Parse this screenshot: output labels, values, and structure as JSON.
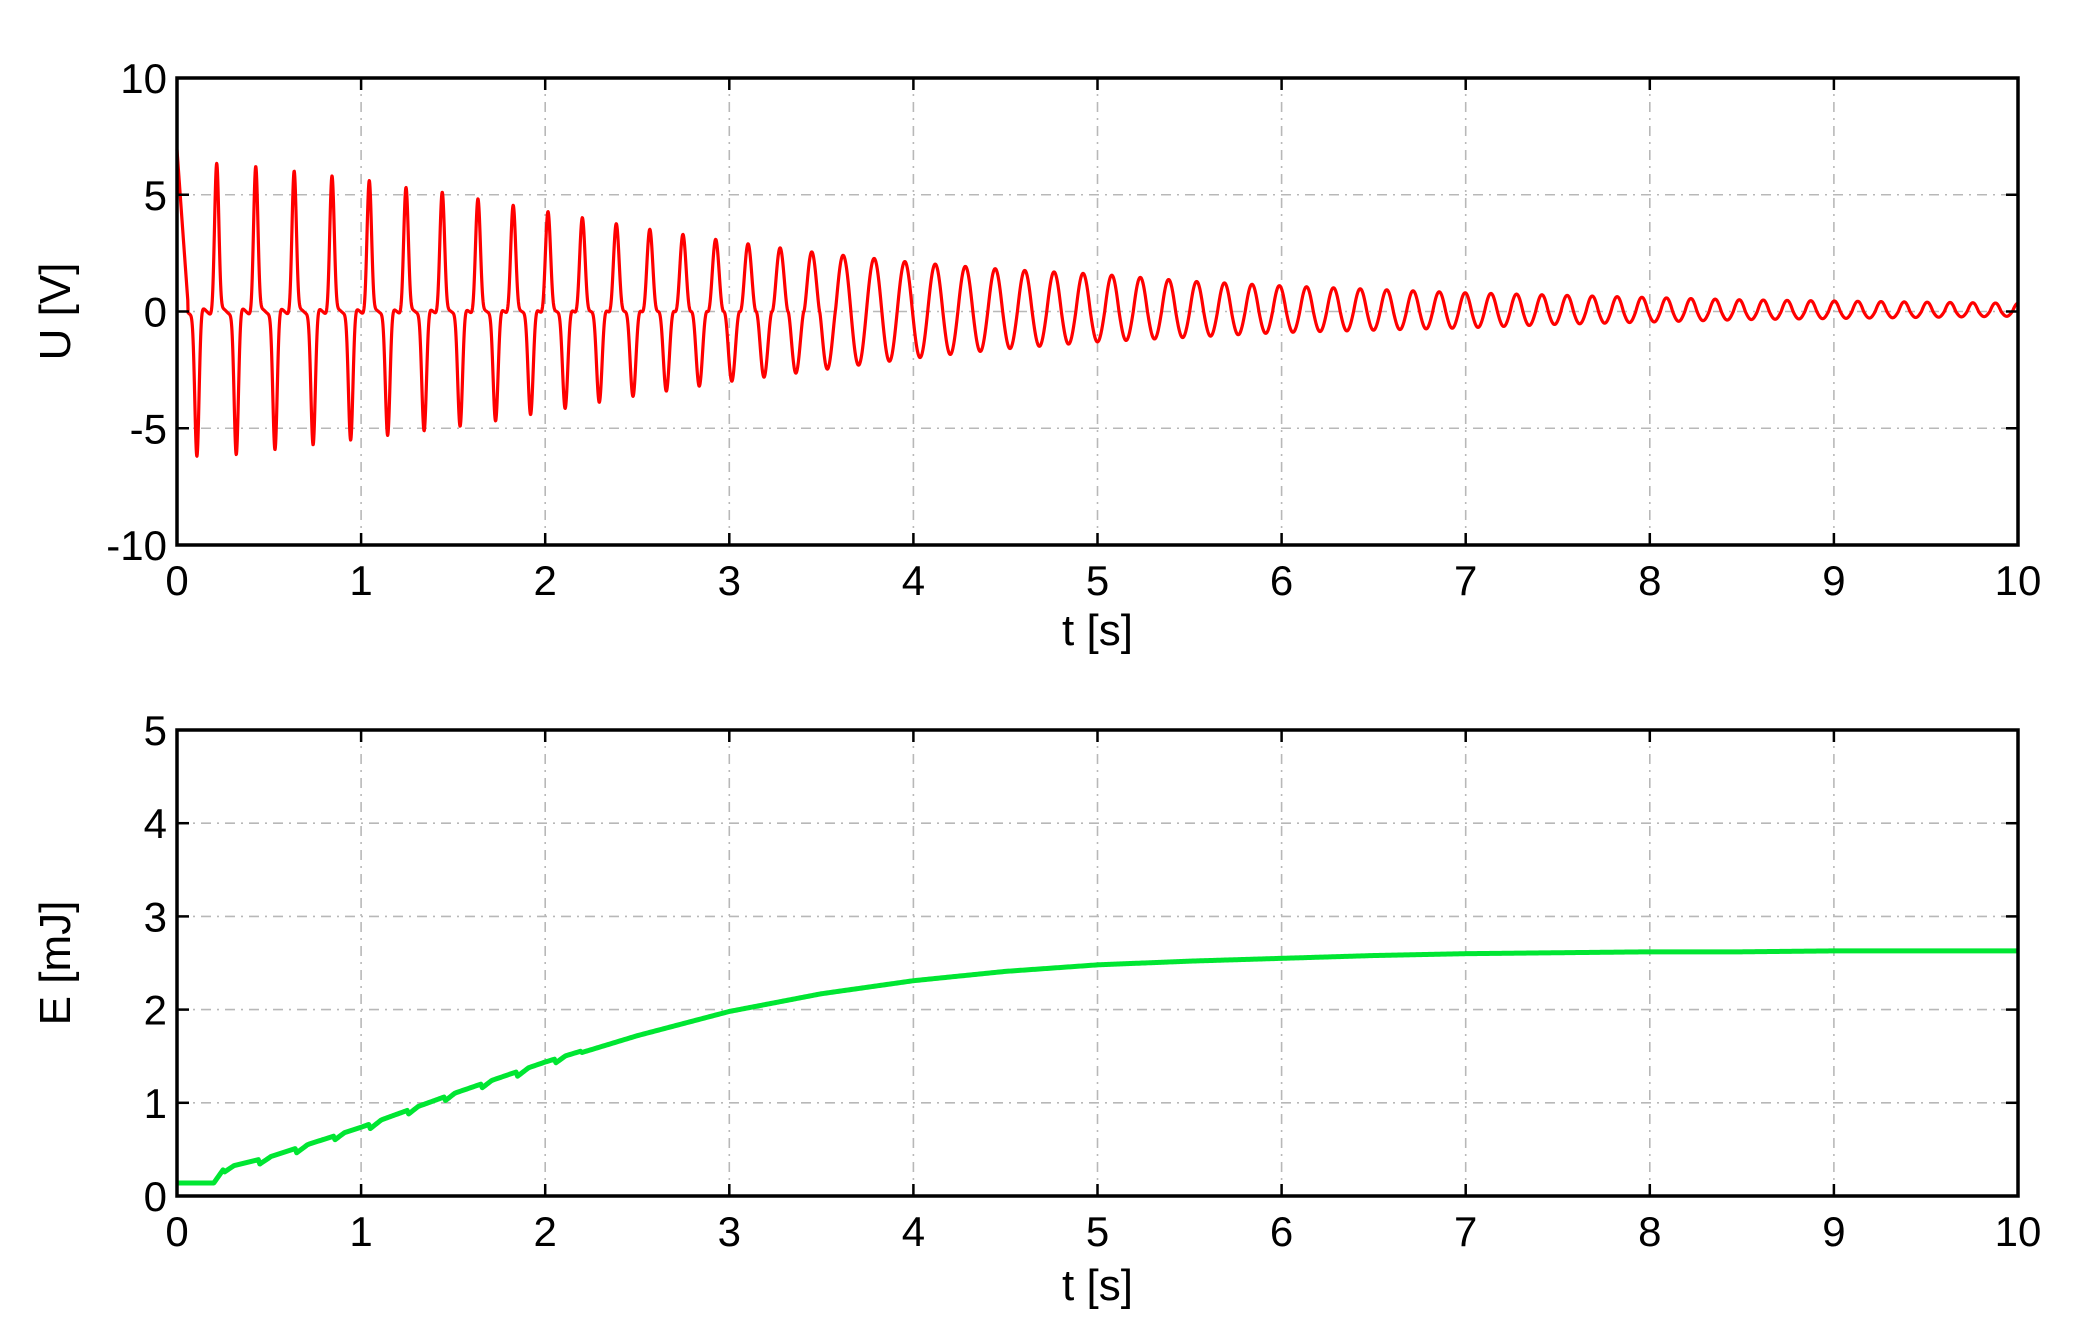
{
  "chart_data": [
    {
      "type": "line",
      "xlabel": "t [s]",
      "ylabel": "U [V]",
      "xlim": [
        0,
        10
      ],
      "ylim": [
        -10,
        10
      ],
      "xticks": [
        "0",
        "1",
        "2",
        "3",
        "4",
        "5",
        "6",
        "7",
        "8",
        "9",
        "10"
      ],
      "yticks": [
        "10",
        "5",
        "0",
        "-5",
        "-10"
      ],
      "grid": true,
      "series": [
        {
          "color": "#ff0000",
          "description": "damped oscillating voltage; spike pulses every ~0.2 s at start, frequency increasing, amplitude decaying",
          "x": [
            0.0,
            0.25,
            0.45,
            0.65,
            0.85,
            1.05,
            1.25,
            1.45,
            1.65,
            2.0,
            2.5,
            3.0,
            3.5,
            4.0,
            4.5,
            5.0,
            5.5,
            6.0,
            6.5,
            7.0,
            7.5,
            8.0,
            8.5,
            9.0,
            9.5,
            10.0
          ],
          "upper_envelope": [
            6.6,
            6.3,
            6.2,
            6.0,
            5.8,
            5.6,
            5.3,
            5.1,
            4.8,
            4.3,
            3.6,
            3.0,
            2.5,
            2.1,
            1.8,
            1.6,
            1.3,
            1.1,
            0.95,
            0.8,
            0.7,
            0.6,
            0.5,
            0.45,
            0.4,
            0.35
          ],
          "lower_envelope": [
            -6.2,
            -6.2,
            -6.0,
            -5.8,
            -5.6,
            -5.4,
            -5.2,
            -5.0,
            -4.8,
            -4.3,
            -3.6,
            -3.0,
            -2.5,
            -2.0,
            -1.6,
            -1.3,
            -1.1,
            -0.9,
            -0.8,
            -0.7,
            -0.55,
            -0.45,
            -0.35,
            -0.3,
            -0.25,
            -0.2
          ]
        }
      ]
    },
    {
      "type": "line",
      "xlabel": "t [s]",
      "ylabel": "E [mJ]",
      "xlim": [
        0,
        10
      ],
      "ylim": [
        0,
        5
      ],
      "xticks": [
        "0",
        "1",
        "2",
        "3",
        "4",
        "5",
        "6",
        "7",
        "8",
        "9",
        "10"
      ],
      "yticks": [
        "5",
        "4",
        "3",
        "2",
        "1",
        "0"
      ],
      "grid": true,
      "series": [
        {
          "color": "#00e632",
          "description": "cumulative energy, staircase rise at start, saturating near 2.63 mJ",
          "x": [
            0.0,
            0.2,
            0.25,
            0.5,
            1.0,
            1.5,
            2.0,
            2.5,
            3.0,
            3.5,
            4.0,
            4.5,
            5.0,
            5.5,
            6.0,
            6.5,
            7.0,
            7.5,
            8.0,
            8.5,
            9.0,
            9.5,
            10.0
          ],
          "y": [
            0.14,
            0.14,
            0.28,
            0.4,
            0.72,
            1.08,
            1.42,
            1.72,
            1.98,
            2.17,
            2.31,
            2.41,
            2.48,
            2.52,
            2.55,
            2.58,
            2.6,
            2.61,
            2.62,
            2.62,
            2.63,
            2.63,
            2.63
          ]
        }
      ]
    }
  ]
}
